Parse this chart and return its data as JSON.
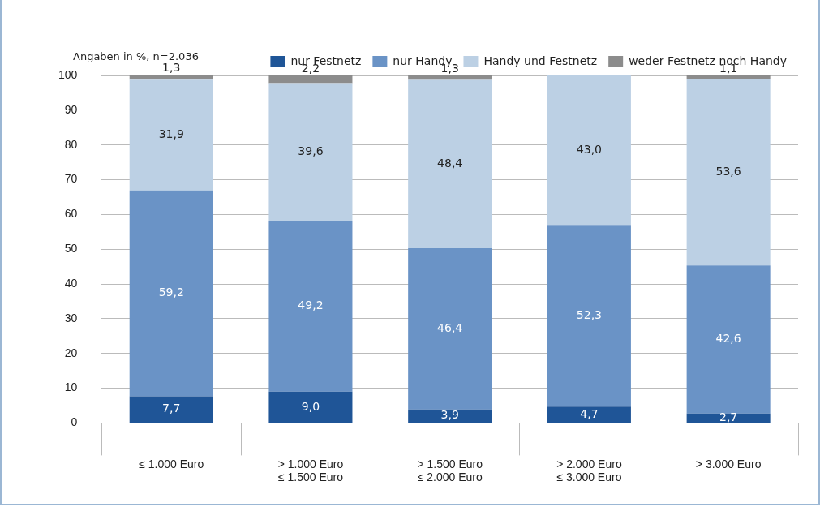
{
  "chart_data": {
    "type": "bar",
    "stacked": true,
    "ylabel": "Angaben in %, n=2.036",
    "categories": [
      "≤ 1.000 Euro",
      "> 1.000 Euro\n≤ 1.500 Euro",
      "> 1.500 Euro\n≤ 2.000 Euro",
      "> 2.000 Euro\n≤ 3.000 Euro",
      "> 3.000 Euro"
    ],
    "series": [
      {
        "name": "nur Festnetz",
        "color": "#1f5597",
        "values": [
          7.7,
          9.0,
          3.9,
          4.7,
          2.7
        ],
        "value_labels": [
          "7,7",
          "9,0",
          "3,9",
          "4,7",
          "2,7"
        ]
      },
      {
        "name": "nur Handy",
        "color": "#6a93c6",
        "values": [
          59.2,
          49.2,
          46.4,
          52.3,
          42.6
        ],
        "value_labels": [
          "59,2",
          "49,2",
          "46,4",
          "52,3",
          "42,6"
        ]
      },
      {
        "name": "Handy und Festnetz",
        "color": "#bcd0e4",
        "values": [
          31.9,
          39.6,
          48.4,
          43.0,
          53.6
        ],
        "value_labels": [
          "31,9",
          "39,6",
          "48,4",
          "43,0",
          "53,6"
        ]
      },
      {
        "name": "weder Festnetz noch Handy",
        "color": "#8c8c8c",
        "values": [
          1.3,
          2.2,
          1.3,
          null,
          1.1
        ],
        "value_labels": [
          "1,3",
          "2,2",
          "1,3",
          null,
          "1,1"
        ]
      }
    ],
    "ylim": [
      0,
      100
    ],
    "yticks": [
      0,
      10,
      20,
      30,
      40,
      50,
      60,
      70,
      80,
      90,
      100
    ],
    "grid": "y",
    "legend": "top right"
  }
}
